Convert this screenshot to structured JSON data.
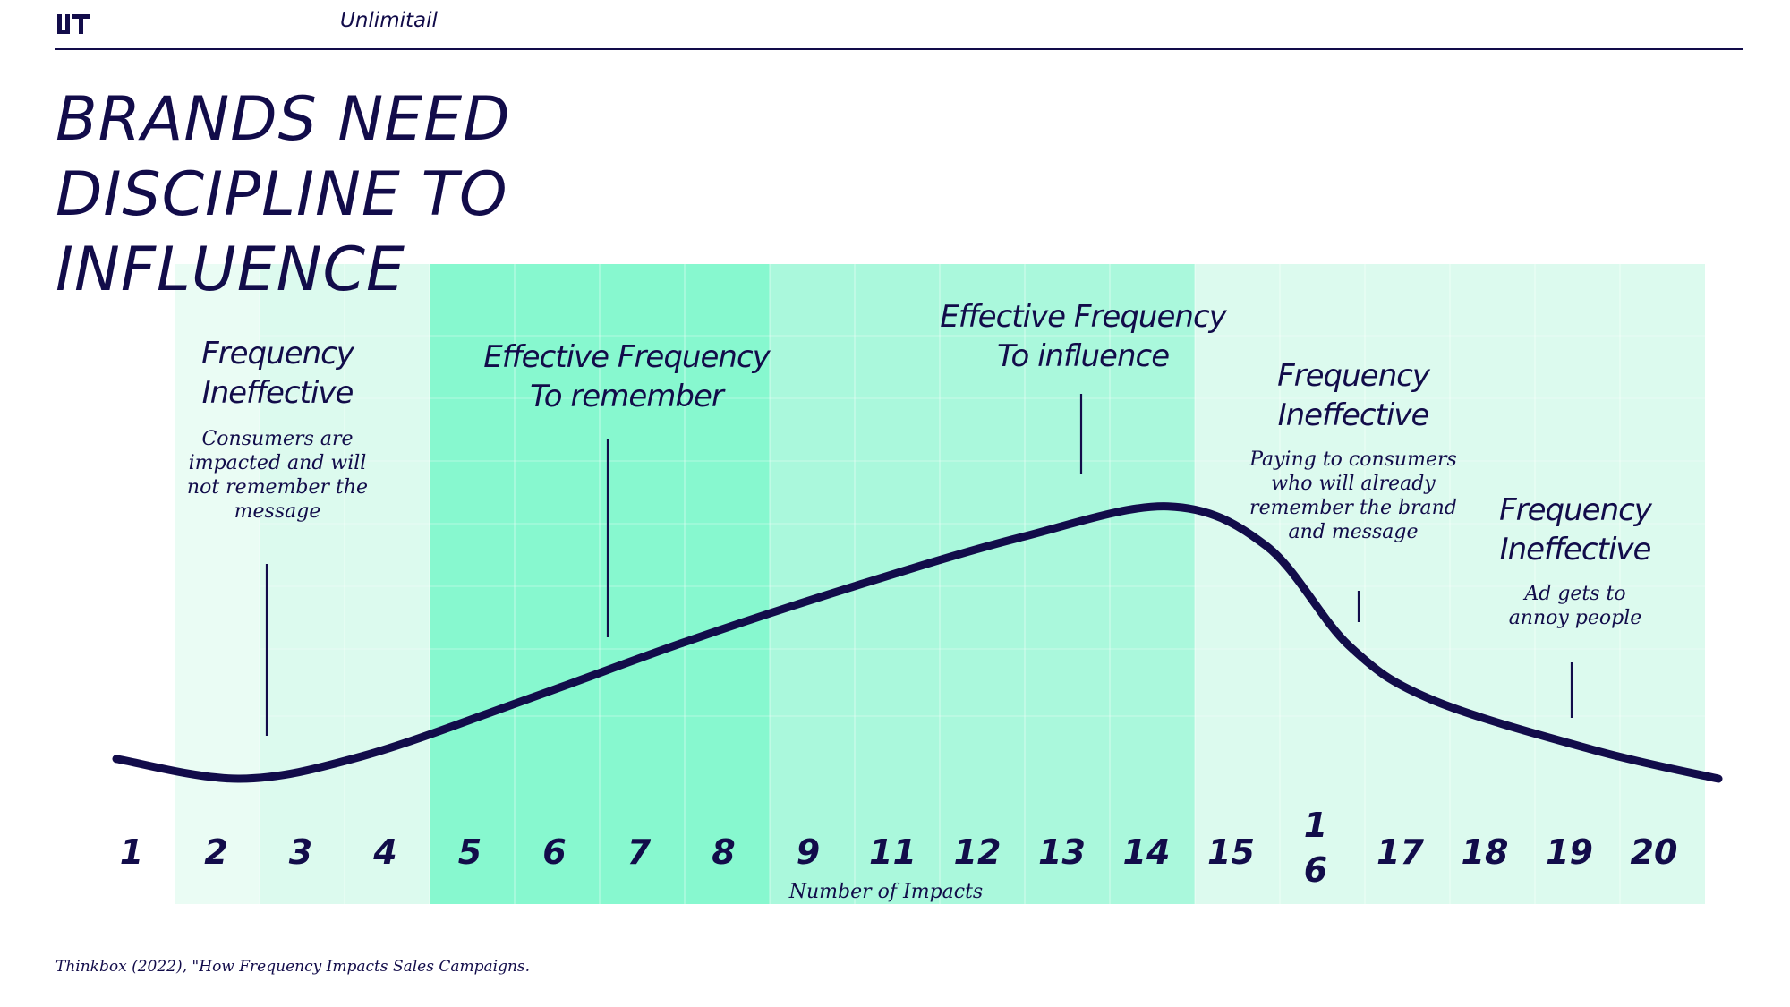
{
  "header": {
    "brand": "Unlimitail",
    "logo_icon": "unlimitail-logo-icon"
  },
  "title_lines": [
    "BRANDS NEED",
    "DISCIPLINE TO",
    "INFLUENCE"
  ],
  "zones": [
    {
      "heading_lines": [
        "Frequency",
        "Ineffective"
      ],
      "description_lines": [
        "Consumers are",
        "impacted and will",
        "not remember the",
        "message"
      ]
    },
    {
      "heading_lines": [
        "Effective Frequency",
        "To remember"
      ],
      "description_lines": []
    },
    {
      "heading_lines": [
        "Effective Frequency",
        "To influence"
      ],
      "description_lines": []
    },
    {
      "heading_lines": [
        "Frequency",
        "Ineffective"
      ],
      "description_lines": [
        "Paying to consumers",
        "who will already",
        "remember the brand",
        "and message"
      ]
    },
    {
      "heading_lines": [
        "Frequency",
        "Ineffective"
      ],
      "description_lines": [
        "Ad gets to",
        "annoy people"
      ]
    }
  ],
  "chart_data": {
    "type": "area",
    "xlabel": "Number of Impacts",
    "tick_labels": [
      "1",
      "2",
      "3",
      "4",
      "5",
      "6",
      "7",
      "8",
      "9",
      "11",
      "12",
      "13",
      "14",
      "15",
      "1\n6",
      "17",
      "18",
      "19",
      "20"
    ],
    "curve": {
      "x": [
        1,
        2.5,
        4,
        6,
        8,
        10,
        12,
        13.8,
        15,
        16,
        17,
        19,
        20.5
      ],
      "y": [
        0.07,
        0.0,
        0.08,
        0.28,
        0.49,
        0.68,
        0.85,
        0.96,
        0.82,
        0.47,
        0.28,
        0.1,
        0.0
      ]
    },
    "colors": {
      "curve": "#120c4a",
      "band_pale": "#eafcf4",
      "band_light": "#dcfaee",
      "band_strong": "#87f8cf",
      "band_mid": "#aaf8dc",
      "band_soft": "#c9f9e5"
    }
  },
  "source": "Thinkbox (2022), \"How Frequency Impacts Sales Campaigns."
}
